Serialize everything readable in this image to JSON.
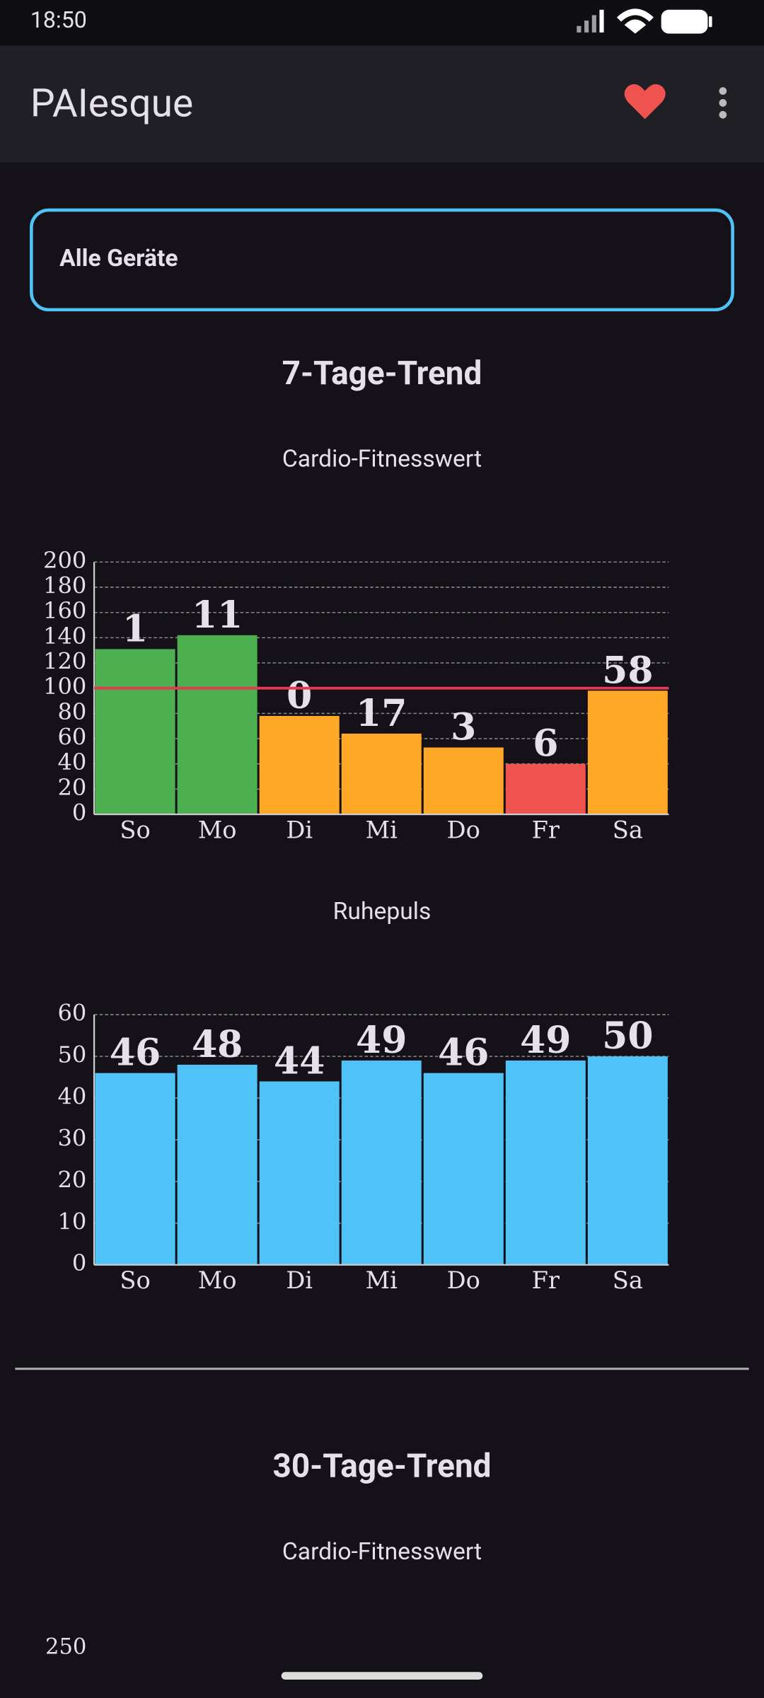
{
  "status_bar": {
    "time": "18:50"
  },
  "app_bar": {
    "title": "PAIesque"
  },
  "device_select": {
    "label": "Alle Geräte"
  },
  "sections": [
    {
      "title": "7-Tage-Trend"
    },
    {
      "title": "30-Tage-Trend"
    }
  ],
  "chart_data": [
    {
      "type": "bar",
      "title": "Cardio-Fitnesswert",
      "categories": [
        "So",
        "Mo",
        "Di",
        "Mi",
        "Do",
        "Fr",
        "Sa"
      ],
      "values": [
        131,
        142,
        78,
        64,
        53,
        40,
        98
      ],
      "point_labels": [
        1,
        11,
        0,
        17,
        3,
        6,
        58
      ],
      "colors": [
        "#4caf50",
        "#4caf50",
        "#ffa726",
        "#ffa726",
        "#ffa726",
        "#ef5350",
        "#ffa726"
      ],
      "reference_line": 100,
      "reference_color": "#e53950",
      "ylim": [
        0,
        200
      ],
      "yticks": [
        0,
        20,
        40,
        60,
        80,
        100,
        120,
        140,
        160,
        180,
        200
      ],
      "grid": true
    },
    {
      "type": "bar",
      "title": "Ruhepuls",
      "categories": [
        "So",
        "Mo",
        "Di",
        "Mi",
        "Do",
        "Fr",
        "Sa"
      ],
      "values": [
        46,
        48,
        44,
        49,
        46,
        49,
        50
      ],
      "color": "#4fc3f7",
      "ylim": [
        0,
        60
      ],
      "yticks": [
        0,
        10,
        20,
        30,
        40,
        50,
        60
      ],
      "grid": true
    },
    {
      "type": "bar",
      "title": "Cardio-Fitnesswert",
      "yticks": [
        250
      ]
    }
  ]
}
